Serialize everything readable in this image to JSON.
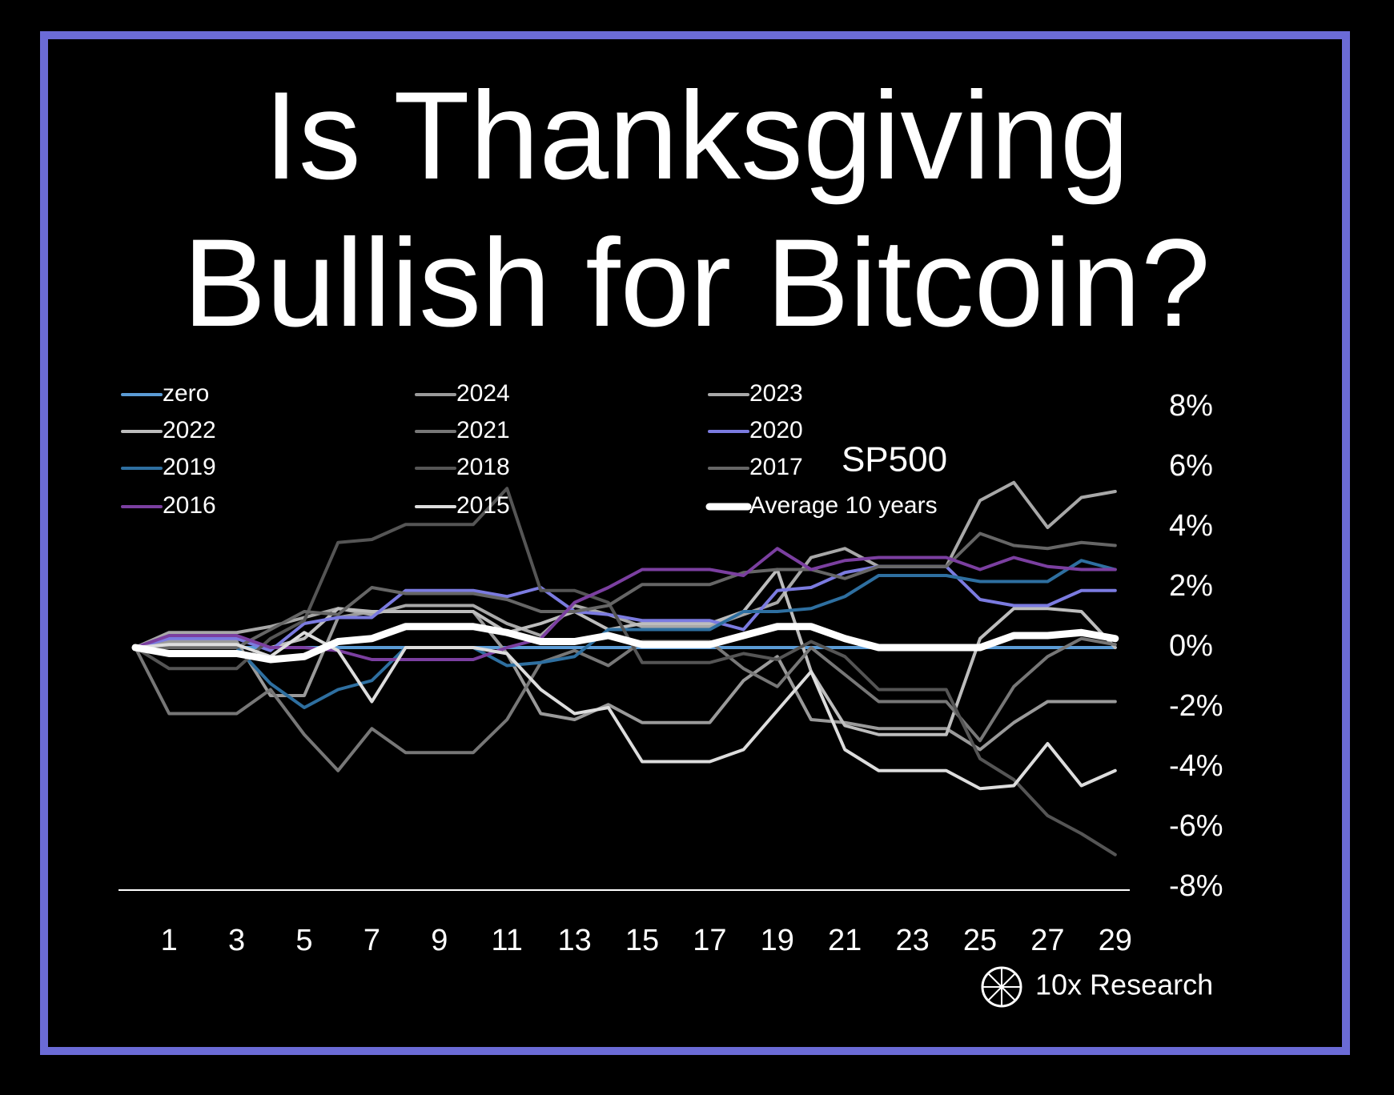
{
  "chart_data": {
    "type": "line",
    "title": "Is Thanksgiving Bullish for Bitcoin?",
    "annotation": "SP500",
    "source": "10x Research",
    "x": [
      0,
      1,
      2,
      3,
      4,
      5,
      6,
      7,
      8,
      9,
      10,
      11,
      12,
      13,
      14,
      15,
      16,
      17,
      18,
      19,
      20,
      21,
      22,
      23,
      24,
      25,
      26,
      27,
      28,
      29
    ],
    "xlim": [
      0,
      29
    ],
    "xticks": [
      1,
      3,
      5,
      7,
      9,
      11,
      13,
      15,
      17,
      19,
      21,
      23,
      25,
      27,
      29
    ],
    "ylim": [
      -8,
      8
    ],
    "yticks": [
      {
        "value": 8,
        "label": "8%"
      },
      {
        "value": 6,
        "label": "6%"
      },
      {
        "value": 4,
        "label": "4%"
      },
      {
        "value": 2,
        "label": "2%"
      },
      {
        "value": 0,
        "label": "0%"
      },
      {
        "value": -2,
        "label": "-2%"
      },
      {
        "value": -4,
        "label": "-4%"
      },
      {
        "value": -6,
        "label": "-6%"
      },
      {
        "value": -8,
        "label": "-8%"
      }
    ],
    "series": [
      {
        "name": "zero",
        "color": "#5b9bd5",
        "values": [
          0,
          0,
          0,
          0,
          0,
          0,
          0,
          0,
          0,
          0,
          0,
          0,
          0,
          0,
          0,
          0,
          0,
          0,
          0,
          0,
          0,
          0,
          0,
          0,
          0,
          0,
          0,
          0,
          0,
          0
        ]
      },
      {
        "name": "2024",
        "color": "#9a9a9a",
        "values": [
          0,
          0.2,
          0.2,
          0.2,
          -1.6,
          -1.6,
          1.0,
          1.2,
          1.2,
          1.2,
          1.2,
          -0.2,
          -2.2,
          -2.4,
          -1.9,
          -2.5,
          -2.5,
          -2.5,
          -1.1,
          -0.3,
          -2.4,
          -2.5,
          -2.7,
          -2.7,
          -2.7,
          -3.4,
          -2.5,
          -1.8,
          -1.8,
          -1.8
        ]
      },
      {
        "name": "2023",
        "color": "#a8a8a8",
        "values": [
          0,
          0.5,
          0.5,
          0.5,
          0.7,
          1.0,
          1.3,
          1.1,
          1.4,
          1.4,
          1.4,
          0.8,
          0.4,
          1.4,
          1.1,
          0.7,
          0.7,
          0.7,
          1.1,
          1.5,
          3.0,
          3.3,
          2.7,
          2.7,
          2.7,
          4.9,
          5.5,
          4.0,
          5.0,
          5.2
        ]
      },
      {
        "name": "2022",
        "color": "#bdbdbd",
        "values": [
          0,
          0.3,
          0.3,
          0.3,
          0,
          0.3,
          1.3,
          1.2,
          1.2,
          1.2,
          1.2,
          0.5,
          0.8,
          1.2,
          0.6,
          0.8,
          0.8,
          0.8,
          1.2,
          2.6,
          -0.8,
          -2.6,
          -2.9,
          -2.9,
          -2.9,
          0.3,
          1.3,
          1.3,
          1.2,
          0
        ]
      },
      {
        "name": "2021",
        "color": "#777777",
        "values": [
          0,
          -2.2,
          -2.2,
          -2.2,
          -1.4,
          -2.9,
          -4.1,
          -2.7,
          -3.5,
          -3.5,
          -3.5,
          -2.4,
          -0.5,
          -0.1,
          -0.6,
          0.2,
          0.2,
          0.2,
          -0.7,
          -1.3,
          0,
          -0.9,
          -1.8,
          -1.8,
          -1.8,
          -3.1,
          -1.3,
          -0.3,
          0.3,
          0.1
        ]
      },
      {
        "name": "2020",
        "color": "#7b7be0",
        "values": [
          0,
          0.3,
          0.3,
          0.3,
          -0.1,
          0.8,
          1.0,
          1.0,
          1.9,
          1.9,
          1.9,
          1.7,
          2.0,
          1.2,
          1.1,
          0.9,
          0.9,
          0.9,
          0.6,
          1.9,
          2.0,
          2.5,
          2.7,
          2.7,
          2.7,
          1.6,
          1.4,
          1.4,
          1.9,
          1.9
        ]
      },
      {
        "name": "2019",
        "color": "#2e6fa0",
        "values": [
          0,
          0,
          0,
          0,
          -1.2,
          -2.0,
          -1.4,
          -1.1,
          0,
          0,
          0,
          -0.6,
          -0.5,
          -0.3,
          0.6,
          0.6,
          0.6,
          0.6,
          1.2,
          1.2,
          1.3,
          1.7,
          2.4,
          2.4,
          2.4,
          2.2,
          2.2,
          2.2,
          2.9,
          2.6
        ]
      },
      {
        "name": "2018",
        "color": "#555555",
        "values": [
          0,
          -0.7,
          -0.7,
          -0.7,
          0.3,
          0.9,
          3.5,
          3.6,
          4.1,
          4.1,
          4.1,
          5.3,
          1.9,
          1.9,
          1.5,
          -0.5,
          -0.5,
          -0.5,
          -0.2,
          -0.4,
          0.2,
          -0.3,
          -1.4,
          -1.4,
          -1.4,
          -3.7,
          -4.4,
          -5.6,
          -6.2,
          -6.9
        ]
      },
      {
        "name": "2017",
        "color": "#666666",
        "values": [
          0,
          0,
          0,
          0,
          0.6,
          1.2,
          1.1,
          2.0,
          1.8,
          1.8,
          1.8,
          1.6,
          1.2,
          1.2,
          1.4,
          2.1,
          2.1,
          2.1,
          2.5,
          2.6,
          2.6,
          2.3,
          2.7,
          2.7,
          2.7,
          3.8,
          3.4,
          3.3,
          3.5,
          3.4
        ]
      },
      {
        "name": "2016",
        "color": "#7b3fa0",
        "values": [
          0,
          0.4,
          0.4,
          0.4,
          0,
          0,
          -0.1,
          -0.4,
          -0.4,
          -0.4,
          -0.4,
          0,
          0.3,
          1.5,
          2.0,
          2.6,
          2.6,
          2.6,
          2.4,
          3.3,
          2.6,
          2.9,
          3.0,
          3.0,
          3.0,
          2.6,
          3.0,
          2.7,
          2.6,
          2.6
        ]
      },
      {
        "name": "2015",
        "color": "#dddddd",
        "values": [
          0,
          0.1,
          0.1,
          0.1,
          -0.3,
          0.5,
          -0.1,
          -1.8,
          0,
          0,
          0,
          -0.2,
          -1.4,
          -2.2,
          -2.0,
          -3.8,
          -3.8,
          -3.8,
          -3.4,
          -2.1,
          -0.8,
          -3.4,
          -4.1,
          -4.1,
          -4.1,
          -4.7,
          -4.6,
          -3.2,
          -4.6,
          -4.1
        ]
      },
      {
        "name": "Average 10 years",
        "color": "#ffffff",
        "width": 9,
        "values": [
          0,
          -0.2,
          -0.2,
          -0.2,
          -0.4,
          -0.3,
          0.2,
          0.3,
          0.7,
          0.7,
          0.7,
          0.5,
          0.2,
          0.2,
          0.4,
          0.1,
          0.1,
          0.1,
          0.4,
          0.7,
          0.7,
          0.3,
          0,
          0,
          0,
          0,
          0.4,
          0.4,
          0.5,
          0.3
        ]
      }
    ]
  }
}
